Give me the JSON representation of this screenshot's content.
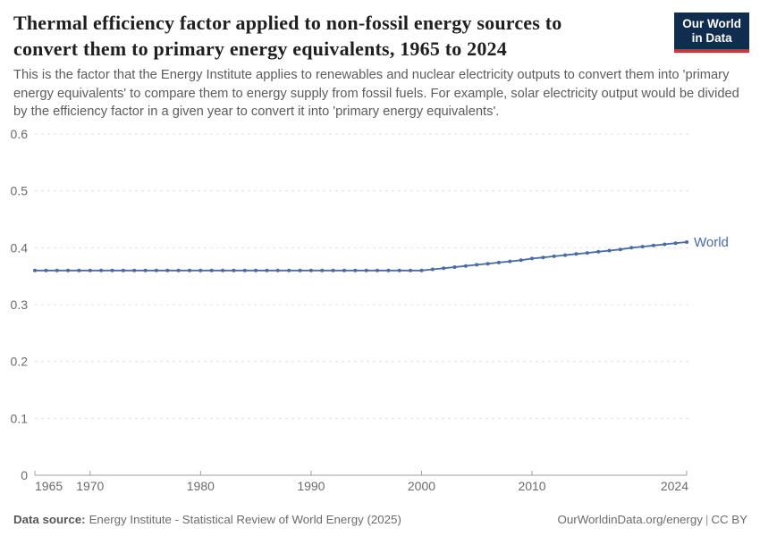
{
  "header": {
    "title_lines": [
      "Thermal efficiency factor applied to non-fossil energy sources to",
      "convert them to primary energy equivalents, 1965 to 2024"
    ],
    "subtitle": "This is the factor that the Energy Institute applies to renewables and nuclear electricity outputs to convert them into 'primary energy equivalents' to compare them to energy supply from fossil fuels. For example, solar electricity output would be divided by the efficiency factor in a given year to convert it into 'primary energy equivalents'.",
    "logo": {
      "line1": "Our World",
      "line2": "in Data",
      "bg_color": "#102d50",
      "bar_color": "#d1342c",
      "text_color": "#ffffff"
    }
  },
  "footer": {
    "datasource_label": "Data source:",
    "datasource_value": "Energy Institute - Statistical Review of World Energy (2025)",
    "url": "OurWorldinData.org/energy",
    "separator": "|",
    "license": "CC BY"
  },
  "chart_data": {
    "type": "line",
    "title": "Thermal efficiency factor applied to non-fossil energy sources to convert them to primary energy equivalents, 1965 to 2024",
    "xlabel": "",
    "ylabel": "",
    "xlim": [
      1965,
      2024
    ],
    "ylim": [
      0,
      0.6
    ],
    "x_ticks": [
      1965,
      1970,
      1980,
      1990,
      2000,
      2010,
      2024
    ],
    "y_ticks": [
      0,
      0.1,
      0.2,
      0.3,
      0.4,
      0.5,
      0.6
    ],
    "grid": "horizontal-dashed",
    "legend": "end-of-line-label",
    "colors": {
      "grid": "#e1e1e1",
      "axis": "#9e9e9e",
      "tick_label": "#6b6b6b"
    },
    "series": [
      {
        "name": "World",
        "color": "#4a6aa5",
        "years": [
          1965,
          1966,
          1967,
          1968,
          1969,
          1970,
          1971,
          1972,
          1973,
          1974,
          1975,
          1976,
          1977,
          1978,
          1979,
          1980,
          1981,
          1982,
          1983,
          1984,
          1985,
          1986,
          1987,
          1988,
          1989,
          1990,
          1991,
          1992,
          1993,
          1994,
          1995,
          1996,
          1997,
          1998,
          1999,
          2000,
          2001,
          2002,
          2003,
          2004,
          2005,
          2006,
          2007,
          2008,
          2009,
          2010,
          2011,
          2012,
          2013,
          2014,
          2015,
          2016,
          2017,
          2018,
          2019,
          2020,
          2021,
          2022,
          2023,
          2024
        ],
        "values": [
          0.36,
          0.36,
          0.36,
          0.36,
          0.36,
          0.36,
          0.36,
          0.36,
          0.36,
          0.36,
          0.36,
          0.36,
          0.36,
          0.36,
          0.36,
          0.36,
          0.36,
          0.36,
          0.36,
          0.36,
          0.36,
          0.36,
          0.36,
          0.36,
          0.36,
          0.36,
          0.36,
          0.36,
          0.36,
          0.36,
          0.36,
          0.36,
          0.36,
          0.36,
          0.36,
          0.36,
          0.362,
          0.364,
          0.366,
          0.368,
          0.37,
          0.372,
          0.374,
          0.376,
          0.378,
          0.381,
          0.383,
          0.385,
          0.387,
          0.389,
          0.391,
          0.393,
          0.395,
          0.397,
          0.4,
          0.402,
          0.404,
          0.406,
          0.408,
          0.41
        ]
      }
    ]
  }
}
